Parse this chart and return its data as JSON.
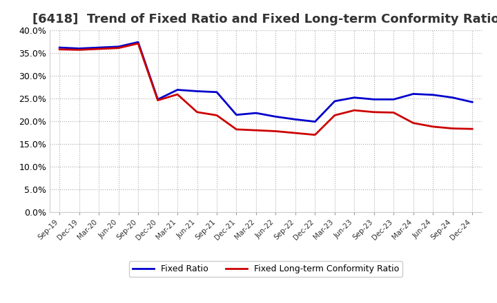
{
  "title": "[6418]  Trend of Fixed Ratio and Fixed Long-term Conformity Ratio",
  "x_labels": [
    "Sep-19",
    "Dec-19",
    "Mar-20",
    "Jun-20",
    "Sep-20",
    "Dec-20",
    "Mar-21",
    "Jun-21",
    "Sep-21",
    "Dec-21",
    "Mar-22",
    "Jun-22",
    "Sep-22",
    "Dec-22",
    "Mar-23",
    "Jun-23",
    "Sep-23",
    "Dec-23",
    "Mar-24",
    "Jun-24",
    "Sep-24",
    "Dec-24"
  ],
  "fixed_ratio": [
    0.362,
    0.36,
    0.362,
    0.364,
    0.374,
    0.248,
    0.269,
    0.266,
    0.264,
    0.214,
    0.218,
    0.21,
    0.204,
    0.199,
    0.244,
    0.252,
    0.248,
    0.248,
    0.26,
    0.258,
    0.252,
    0.242
  ],
  "fixed_lt_ratio": [
    0.358,
    0.357,
    0.359,
    0.361,
    0.371,
    0.246,
    0.259,
    0.22,
    0.213,
    0.182,
    0.18,
    0.178,
    0.174,
    0.17,
    0.213,
    0.224,
    0.22,
    0.219,
    0.196,
    0.188,
    0.184,
    0.183
  ],
  "fixed_ratio_color": "#0000cc",
  "fixed_lt_ratio_color": "#cc0000",
  "ylim": [
    0.0,
    0.4
  ],
  "yticks": [
    0.0,
    0.05,
    0.1,
    0.15,
    0.2,
    0.25,
    0.3,
    0.35,
    0.4
  ],
  "background_color": "#ffffff",
  "plot_bg_color": "#ffffff",
  "grid_color": "#aaaaaa",
  "title_fontsize": 13,
  "legend_labels": [
    "Fixed Ratio",
    "Fixed Long-term Conformity Ratio"
  ]
}
